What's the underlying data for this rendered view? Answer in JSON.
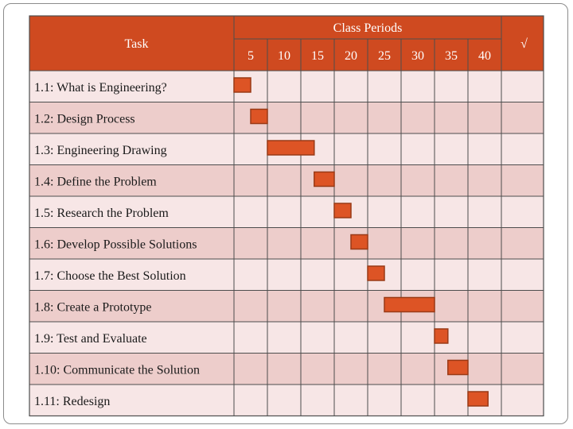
{
  "chart_data": {
    "type": "gantt",
    "title": "",
    "task_header": "Task",
    "period_header": "Class Periods",
    "check_header": "√",
    "period_ticks": [
      "5",
      "10",
      "15",
      "20",
      "25",
      "30",
      "35",
      "40"
    ],
    "tasks": [
      {
        "label": "1.1: What is Engineering?",
        "start": 0,
        "end": 2.5
      },
      {
        "label": "1.2:  Design Process",
        "start": 2.5,
        "end": 5
      },
      {
        "label": "1.3:  Engineering Drawing",
        "start": 5,
        "end": 12
      },
      {
        "label": "1.4:  Define the Problem",
        "start": 12,
        "end": 15
      },
      {
        "label": "1.5:  Research the Problem",
        "start": 15,
        "end": 17.5
      },
      {
        "label": "1.6:  Develop Possible Solutions",
        "start": 17.5,
        "end": 20
      },
      {
        "label": "1.7:  Choose the Best Solution",
        "start": 20,
        "end": 22.5
      },
      {
        "label": "1.8:  Create a Prototype",
        "start": 22.5,
        "end": 30
      },
      {
        "label": "1.9:  Test and Evaluate",
        "start": 30,
        "end": 32
      },
      {
        "label": "1.10:  Communicate the Solution",
        "start": 32,
        "end": 35
      },
      {
        "label": "1.11:  Redesign",
        "start": 35,
        "end": 38
      }
    ],
    "colors": {
      "header": "#cf4a20",
      "row_light": "#f7e6e6",
      "row_dark": "#edcdcb",
      "bar": "#dd5425",
      "bar_border": "#993a17",
      "grid": "#4d4d4d"
    }
  }
}
